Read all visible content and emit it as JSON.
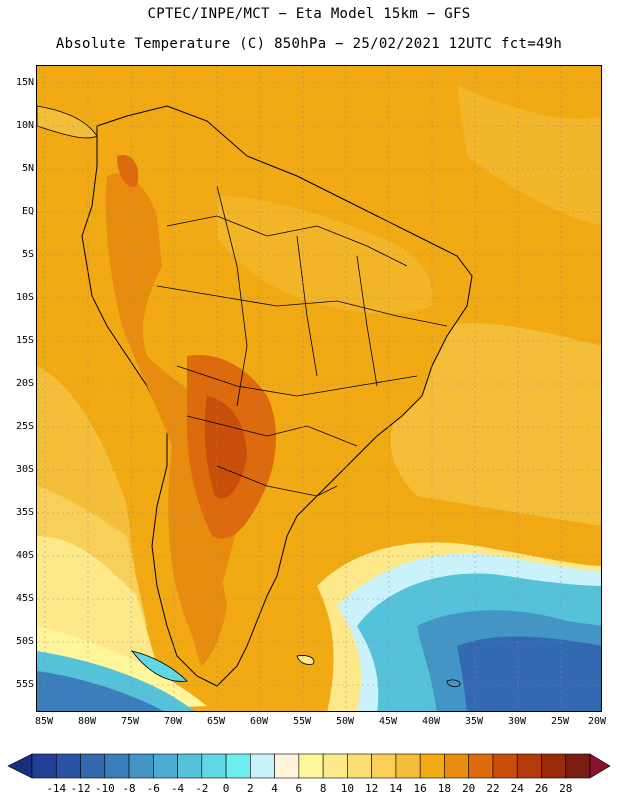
{
  "title_line1": "CPTEC/INPE/MCT −  Eta Model 15km − GFS",
  "title_line2": "Absolute Temperature (C) 850hPa − 25/02/2021 12UTC fct=49h",
  "lat_labels": [
    "15N",
    "10N",
    "5N",
    "EQ",
    "5S",
    "10S",
    "15S",
    "20S",
    "25S",
    "30S",
    "35S",
    "40S",
    "45S",
    "50S",
    "55S"
  ],
  "lon_labels": [
    "85W",
    "80W",
    "75W",
    "70W",
    "65W",
    "60W",
    "55W",
    "50W",
    "45W",
    "40W",
    "35W",
    "30W",
    "25W",
    "20W"
  ],
  "colorbar": {
    "labels": [
      "-14",
      "-12",
      "-10",
      "-8",
      "-6",
      "-4",
      "-2",
      "0",
      "2",
      "4",
      "6",
      "8",
      "10",
      "12",
      "14",
      "16",
      "18",
      "20",
      "22",
      "24",
      "26",
      "28"
    ],
    "colors": [
      "#22409a",
      "#2a53a6",
      "#3269b1",
      "#3a7fbc",
      "#4395c6",
      "#4cabd0",
      "#56c2da",
      "#60d8e4",
      "#6deef0",
      "#caf2fa",
      "#fff5dc",
      "#fff59a",
      "#fde98a",
      "#fbde74",
      "#f8cf58",
      "#f4be38",
      "#f1aa14",
      "#e88c10",
      "#dd6a0c",
      "#c94e0a",
      "#b33a0a",
      "#992a0a",
      "#7a1c10"
    ],
    "low_arrow_color": "#1a2f80",
    "high_arrow_color": "#8a1030"
  },
  "legend_colors": {
    "ocean_warm": "#f1aa14",
    "ocean_mid": "#f4be38",
    "hot_core": "#dd6a0c",
    "cold_ocean": "#3a7fbc"
  }
}
